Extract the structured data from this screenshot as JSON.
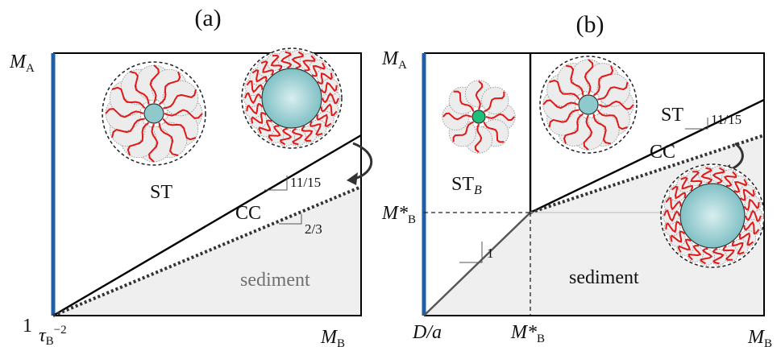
{
  "panels": {
    "a": {
      "label": "(a)",
      "y_axis_label": "M",
      "y_axis_sub": "A",
      "x_axis_label": "M",
      "x_axis_sub": "B",
      "y_origin_label": "1",
      "x_origin_label": "τ",
      "x_origin_sub": "B",
      "x_origin_sup": "−2",
      "regions": {
        "st": "ST",
        "cc": "CC",
        "sediment": "sediment"
      },
      "slopes": {
        "upper": "11/15",
        "lower": "2/3"
      }
    },
    "b": {
      "label": "(b)",
      "y_axis_label": "M",
      "y_axis_sub": "A",
      "x_axis_label": "M",
      "x_axis_sub": "B",
      "x_origin_label": "D/a",
      "y_crit_label": "M*",
      "y_crit_sub": "B",
      "x_crit_label": "M*",
      "x_crit_sub": "B",
      "regions": {
        "st": "ST",
        "stb": "ST",
        "stb_sub": "B",
        "cc": "CC",
        "sediment": "sediment"
      },
      "slopes": {
        "upper": "11/15",
        "diag": "1"
      }
    }
  },
  "colors": {
    "axis_blue": "#1f5fa8",
    "chain_red": "#e01818",
    "core_teal": "#8ec9cc",
    "sediment_fill": "#efefef",
    "green_core": "#1fbf7a"
  }
}
